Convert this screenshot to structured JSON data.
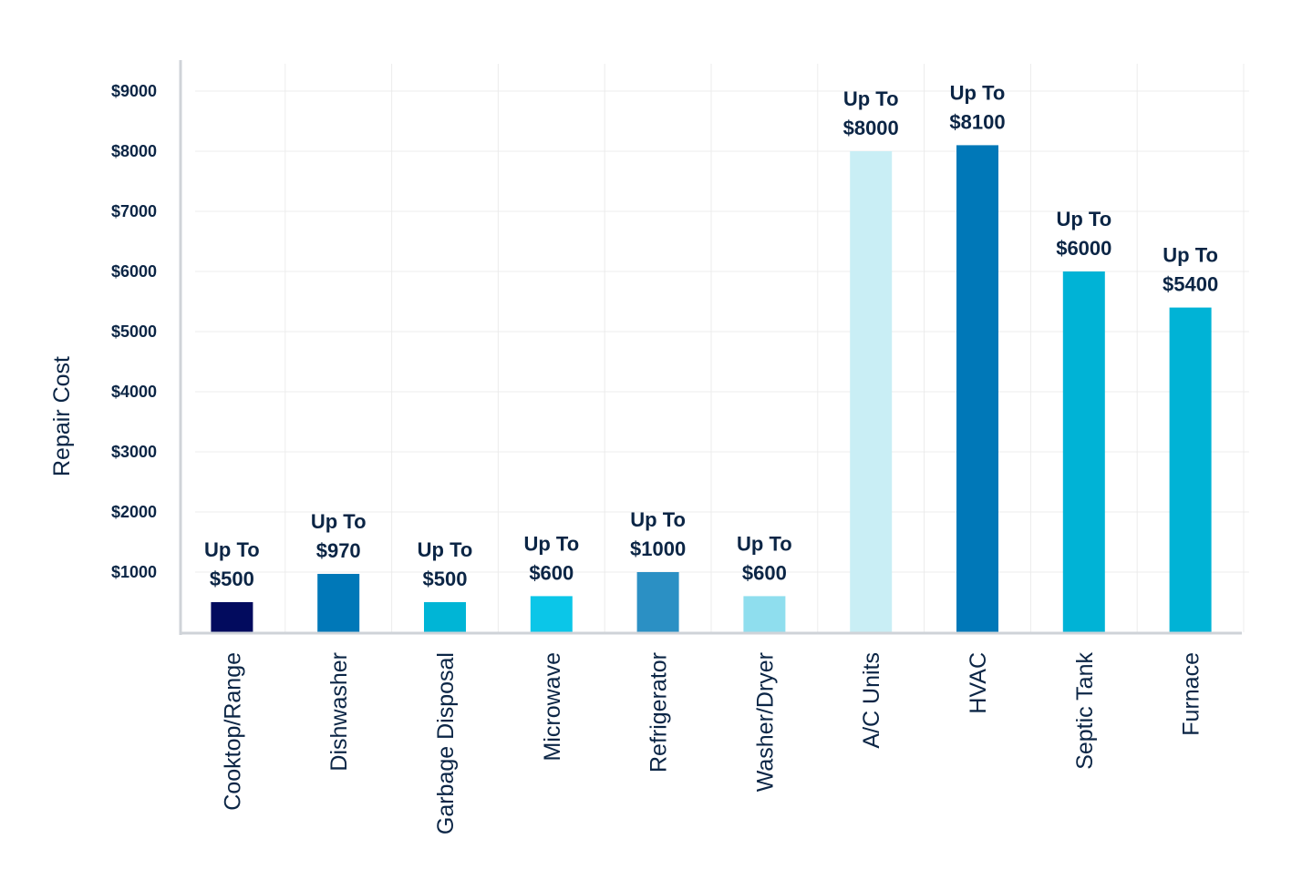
{
  "chart_data": {
    "type": "bar",
    "title": "",
    "xlabel": "",
    "ylabel": "Repair Cost",
    "ylim": [
      0,
      9000
    ],
    "grid": true,
    "categories": [
      "Cooktop/Range",
      "Dishwasher",
      "Garbage Disposal",
      "Microwave",
      "Refrigerator",
      "Washer/Dryer",
      "A/C Units",
      "HVAC",
      "Septic Tank",
      "Furnace"
    ],
    "values": [
      500,
      970,
      500,
      600,
      1000,
      600,
      8000,
      8100,
      6000,
      5400
    ],
    "bar_colors": [
      "#020b5e",
      "#0078b8",
      "#00b5d6",
      "#0bc6e8",
      "#2b90c4",
      "#8fdeee",
      "#c9eef5",
      "#0078b8",
      "#00b3d6",
      "#00b3d6"
    ],
    "label_prefix": "Up To",
    "value_labels": [
      "$500",
      "$970",
      "$500",
      "$600",
      "$1000",
      "$600",
      "$8000",
      "$8100",
      "$6000",
      "$5400"
    ],
    "y_ticks": [
      {
        "value": 1000,
        "label": "$1000"
      },
      {
        "value": 2000,
        "label": "$2000"
      },
      {
        "value": 3000,
        "label": "$3000"
      },
      {
        "value": 4000,
        "label": "$4000"
      },
      {
        "value": 5000,
        "label": "$5000"
      },
      {
        "value": 6000,
        "label": "$6000"
      },
      {
        "value": 7000,
        "label": "$7000"
      },
      {
        "value": 8000,
        "label": "$8000"
      },
      {
        "value": 9000,
        "label": "$9000"
      }
    ]
  }
}
